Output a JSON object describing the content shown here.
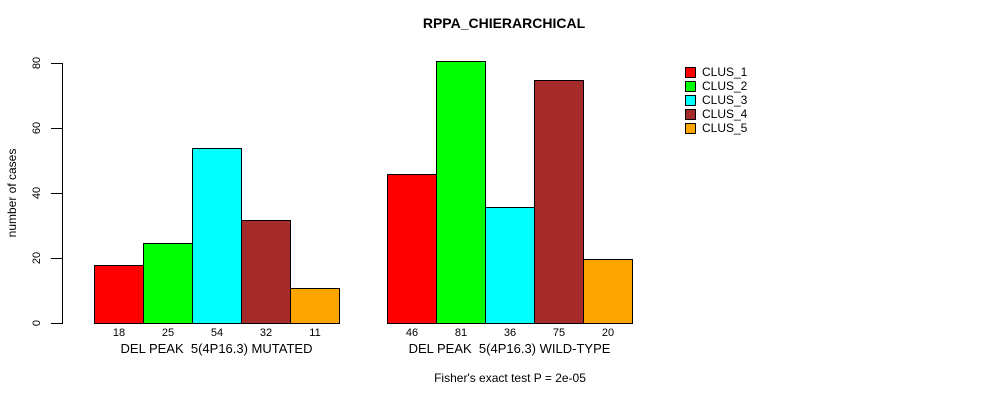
{
  "chart_data": {
    "type": "bar",
    "title": "RPPA_CHIERARCHICAL",
    "ylabel": "number of cases",
    "xlabel": "",
    "ylim": [
      0,
      80
    ],
    "yticks": [
      0,
      20,
      40,
      60,
      80
    ],
    "grid": false,
    "legend_position": "right",
    "categories": [
      "DEL PEAK  5(4P16.3) MUTATED",
      "DEL PEAK  5(4P16.3) WILD-TYPE"
    ],
    "series": [
      {
        "name": "CLUS_1",
        "color": "#FF0000",
        "values": [
          18,
          46
        ]
      },
      {
        "name": "CLUS_2",
        "color": "#00FF00",
        "values": [
          25,
          81
        ]
      },
      {
        "name": "CLUS_3",
        "color": "#00FFFF",
        "values": [
          54,
          36
        ]
      },
      {
        "name": "CLUS_4",
        "color": "#A52A2A",
        "values": [
          32,
          75
        ]
      },
      {
        "name": "CLUS_5",
        "color": "#FFA500",
        "values": [
          11,
          20
        ]
      }
    ],
    "bar_value_labels_shown": true,
    "annotation": "Fisher's exact test P = 2e-05"
  }
}
